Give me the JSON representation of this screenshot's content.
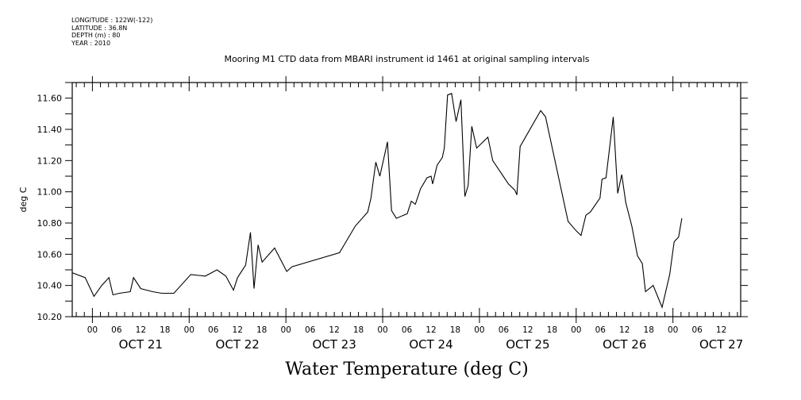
{
  "header": {
    "meta_lines": [
      "LONGITUDE : 122W(-122)",
      "LATITUDE : 36.8N",
      "DEPTH (m) : 80",
      "YEAR : 2010"
    ],
    "plot_title": "Mooring M1 CTD data from MBARI instrument id 1461 at original sampling intervals",
    "variable_title": "Water Temperature (deg C)"
  },
  "chart_data": {
    "type": "line",
    "title": "Mooring M1 CTD data from MBARI instrument id 1461 at original sampling intervals",
    "subtitle": "Water Temperature (deg C)",
    "xlabel": "",
    "ylabel": "deg C",
    "x_units": "hours since OCT 21 2010 00:00",
    "xlim": [
      -5.0,
      160.8
    ],
    "ylim": [
      10.2,
      11.7
    ],
    "y_ticks": [
      10.2,
      10.4,
      10.6,
      10.8,
      11.0,
      11.2,
      11.4,
      11.6
    ],
    "y_tick_labels": [
      "10.20",
      "10.40",
      "10.60",
      "10.80",
      "11.00",
      "11.20",
      "11.40",
      "11.60"
    ],
    "hour_tick_labels": [
      "00",
      "06",
      "12",
      "18"
    ],
    "day_labels": [
      {
        "label": "OCT 21",
        "hours": 12
      },
      {
        "label": "OCT 22",
        "hours": 36
      },
      {
        "label": "OCT 23",
        "hours": 60
      },
      {
        "label": "OCT 24",
        "hours": 84
      },
      {
        "label": "OCT 25",
        "hours": 108
      },
      {
        "label": "OCT 26",
        "hours": 132
      },
      {
        "label": "OCT 27",
        "hours": 156
      }
    ],
    "grid": false,
    "legend": "none",
    "series": [
      {
        "name": "Water Temperature",
        "color": "#000000",
        "x": [
          -4.9,
          -1.8,
          0.4,
          2.3,
          4.1,
          5.1,
          6.7,
          9.4,
          10.2,
          12.0,
          14.9,
          17.2,
          20.2,
          24.4,
          28.0,
          30.9,
          33.1,
          35.0,
          36.0,
          38.0,
          39.2,
          40.1,
          41.1,
          42.1,
          45.2,
          48.2,
          49.5,
          61.3,
          65.2,
          68.3,
          69.1,
          70.3,
          71.3,
          73.2,
          74.2,
          75.4,
          78.1,
          79.1,
          80.1,
          81.4,
          83.0,
          84.0,
          84.4,
          85.5,
          86.8,
          87.3,
          88.1,
          89.1,
          90.2,
          91.4,
          92.4,
          93.2,
          94.1,
          95.3,
          98.1,
          99.3,
          103.2,
          104.8,
          105.3,
          106.1,
          111.2,
          112.4,
          118.0,
          120.0,
          121.2,
          122.4,
          123.5,
          125.9,
          126.4,
          127.4,
          129.2,
          130.3,
          131.3,
          132.3,
          133.8,
          135.2,
          136.4,
          137.2,
          139.1,
          141.3,
          143.2,
          144.3,
          145.4,
          146.2
        ],
        "y": [
          10.48,
          10.45,
          10.33,
          10.4,
          10.45,
          10.34,
          10.35,
          10.36,
          10.45,
          10.38,
          10.36,
          10.35,
          10.35,
          10.47,
          10.46,
          10.5,
          10.46,
          10.37,
          10.45,
          10.53,
          10.74,
          10.38,
          10.66,
          10.55,
          10.64,
          10.49,
          10.52,
          10.61,
          10.78,
          10.87,
          10.96,
          11.19,
          11.1,
          11.32,
          10.88,
          10.83,
          10.86,
          10.94,
          10.92,
          11.02,
          11.09,
          11.1,
          11.05,
          11.17,
          11.22,
          11.28,
          11.62,
          11.63,
          11.45,
          11.59,
          10.97,
          11.04,
          11.42,
          11.28,
          11.35,
          11.2,
          11.05,
          11.01,
          10.98,
          11.29,
          11.52,
          11.48,
          10.81,
          10.75,
          10.72,
          10.85,
          10.87,
          10.96,
          11.08,
          11.09,
          11.48,
          10.99,
          11.11,
          10.93,
          10.78,
          10.59,
          10.54,
          10.36,
          10.4,
          10.26,
          10.47,
          10.68,
          10.71,
          10.83
        ]
      }
    ]
  }
}
